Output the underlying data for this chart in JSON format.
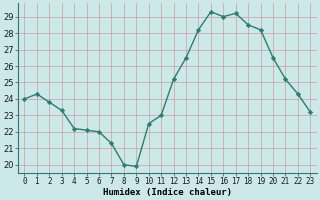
{
  "x": [
    0,
    1,
    2,
    3,
    4,
    5,
    6,
    7,
    8,
    9,
    10,
    11,
    12,
    13,
    14,
    15,
    16,
    17,
    18,
    19,
    20,
    21,
    22,
    23
  ],
  "y": [
    24.0,
    24.3,
    23.8,
    23.3,
    22.2,
    22.1,
    22.0,
    21.3,
    20.0,
    19.9,
    22.5,
    23.0,
    25.2,
    26.5,
    28.2,
    29.3,
    29.0,
    29.2,
    28.5,
    28.2,
    26.5,
    25.2,
    24.3,
    23.2
  ],
  "line_color": "#2e7d6e",
  "marker": "D",
  "marker_size": 2.2,
  "bg_color": "#cce8e8",
  "grid_color": "#b0d0d0",
  "xlabel": "Humidex (Indice chaleur)",
  "ylabel_ticks": [
    20,
    21,
    22,
    23,
    24,
    25,
    26,
    27,
    28,
    29
  ],
  "xlim": [
    -0.5,
    23.5
  ],
  "ylim": [
    19.5,
    29.8
  ],
  "xlabel_fontsize": 6.5,
  "tick_fontsize": 5.5
}
